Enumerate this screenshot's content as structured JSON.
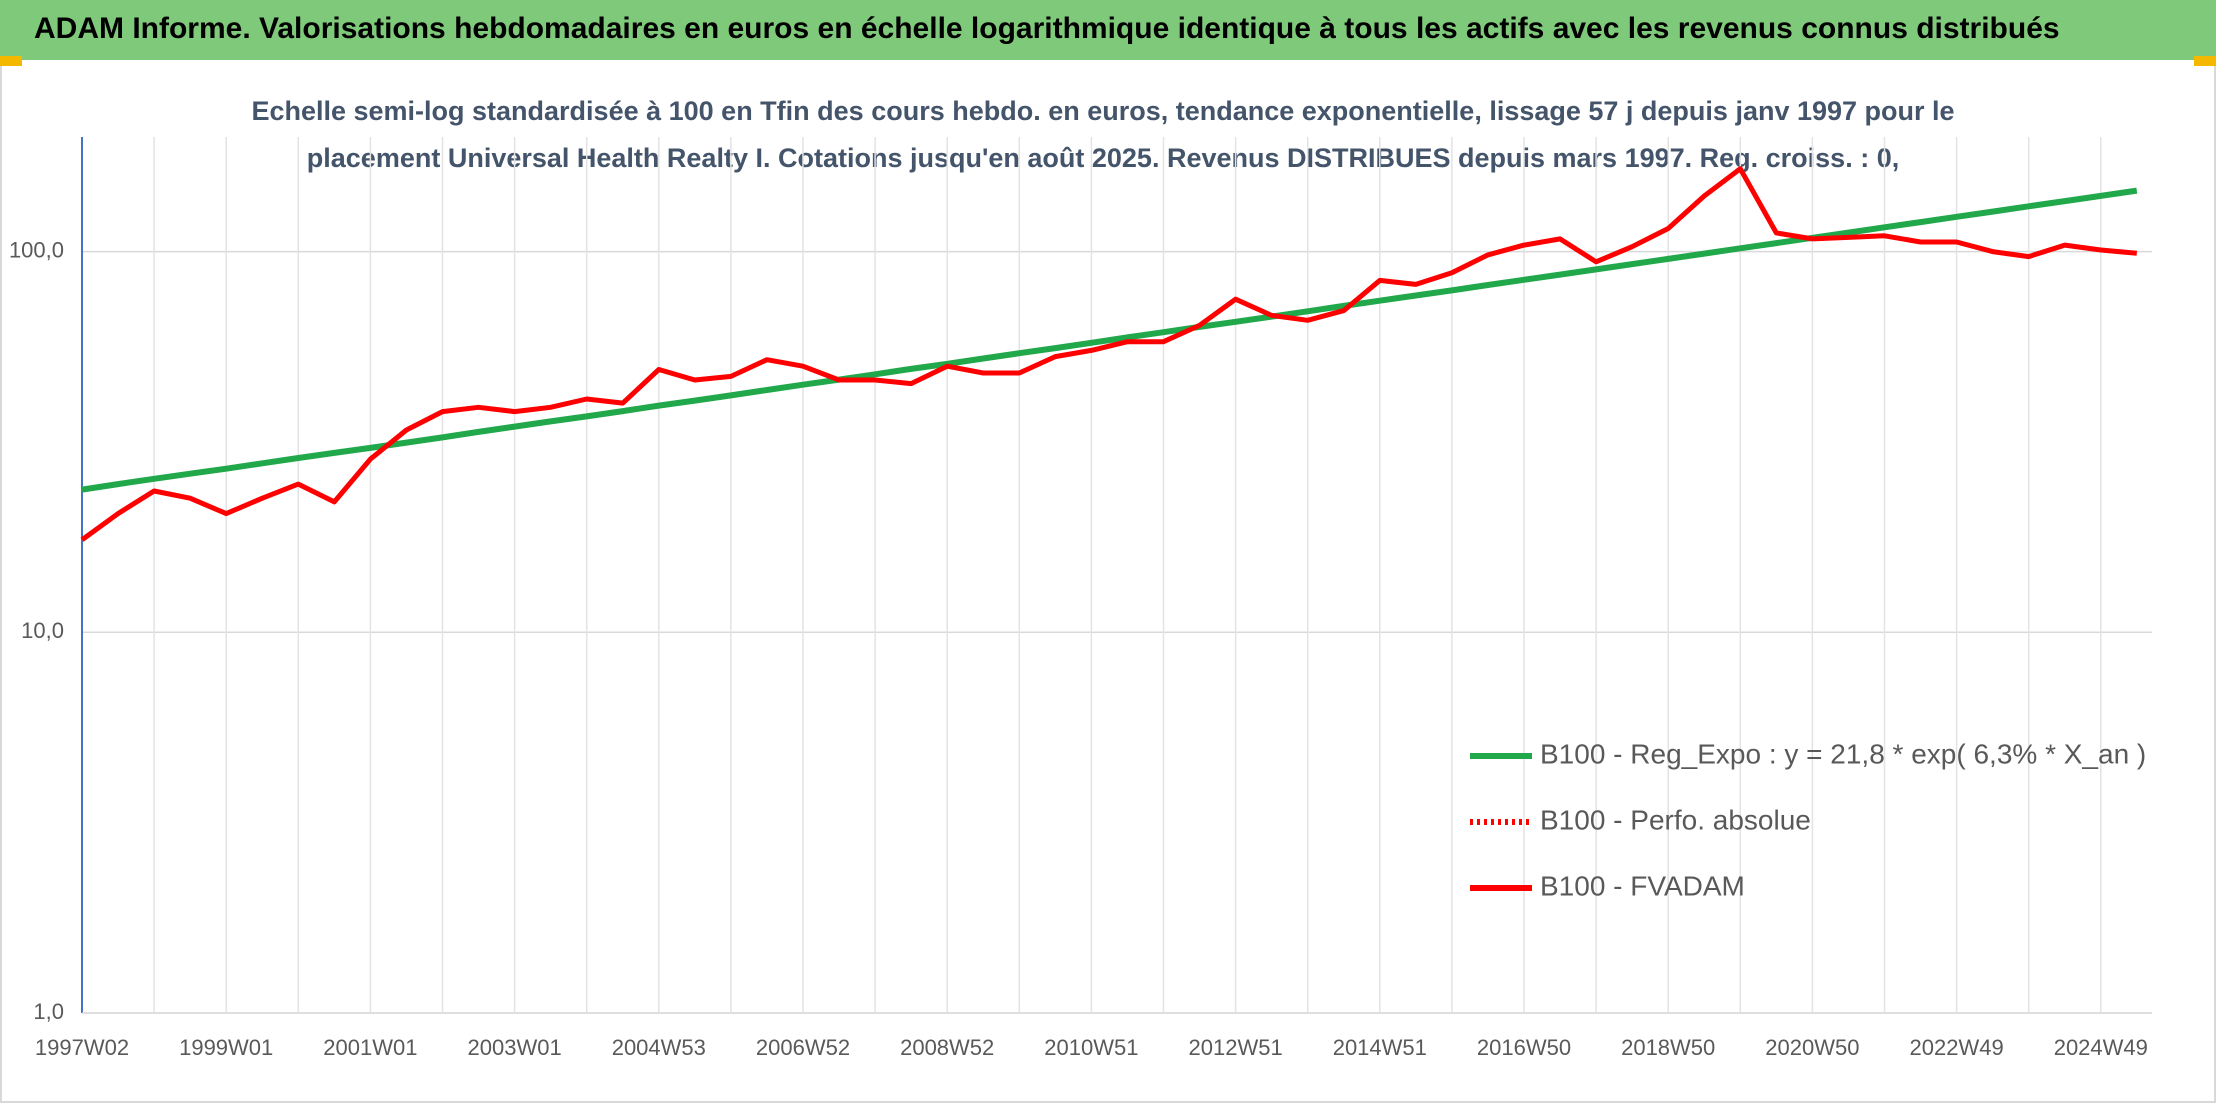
{
  "chart_data": {
    "type": "line",
    "title": "ADAM Informe. Valorisations hebdomadaires en euros en échelle logarithmique identique à tous les actifs avec les revenus connus distribués",
    "subtitle": [
      "Echelle semi-log standardisée à 100 en Tfin des cours hebdo. en euros, tendance exponentielle, lissage 57 j depuis janv 1997 pour le",
      "placement Universal Health Realty I. Cotations jusqu'en août 2025. Revenus DISTRIBUES depuis mars 1997. Reg. croiss. : 0,"
    ],
    "log_scale": true,
    "grid": true,
    "legend_position": "right",
    "ylim": [
      1,
      200
    ],
    "yticks": [
      {
        "value": 1,
        "label": "1,0"
      },
      {
        "value": 10,
        "label": "10,0"
      },
      {
        "value": 100,
        "label": "100,0"
      }
    ],
    "categories": [
      "1997W02",
      null,
      null,
      null,
      "1999W01",
      null,
      null,
      null,
      "2001W01",
      null,
      null,
      null,
      "2003W01",
      null,
      null,
      null,
      "2004W53",
      null,
      null,
      null,
      "2006W52",
      null,
      null,
      null,
      "2008W52",
      null,
      null,
      null,
      "2010W51",
      null,
      null,
      null,
      "2012W51",
      null,
      null,
      null,
      "2014W51",
      null,
      null,
      null,
      "2016W50",
      null,
      null,
      null,
      "2018W50",
      null,
      null,
      null,
      "2020W50",
      null,
      null,
      null,
      "2022W49",
      null,
      null,
      null,
      "2024W49",
      null
    ],
    "series": [
      {
        "name": "B100 - Reg_Expo : y = 21,8 * exp( 6,3% *  X_an )",
        "color": "#21a84a",
        "style": "solid",
        "values": [
          23.7,
          24.5,
          25.3,
          26.1,
          26.9,
          27.8,
          28.7,
          29.6,
          30.5,
          31.5,
          32.5,
          33.6,
          34.7,
          35.8,
          36.9,
          38.1,
          39.4,
          40.6,
          41.9,
          43.3,
          44.7,
          46.1,
          47.6,
          49.2,
          50.7,
          52.4,
          54.1,
          55.8,
          57.6,
          59.5,
          61.4,
          63.4,
          65.4,
          67.5,
          69.7,
          72.0,
          74.3,
          76.7,
          79.1,
          81.7,
          84.3,
          87.0,
          89.8,
          92.7,
          95.7,
          98.8,
          102.0,
          105.3,
          108.7,
          112.2,
          115.8,
          119.5,
          123.4,
          127.4,
          131.5,
          135.7,
          140.1,
          144.6
        ]
      },
      {
        "name": "B100 - Perfo. absolue",
        "color": "#ff0000",
        "style": "dotted",
        "values": [
          null,
          null,
          null,
          null,
          null,
          null,
          null,
          null,
          null,
          null,
          null,
          null,
          null,
          null,
          null,
          null,
          null,
          null,
          null,
          null,
          null,
          null,
          null,
          null,
          null,
          null,
          null,
          null,
          null,
          null,
          null,
          null,
          null,
          null,
          null,
          null,
          null,
          null,
          null,
          null,
          null,
          null,
          null,
          null,
          null,
          null,
          null,
          null,
          null,
          null,
          null,
          null,
          null,
          null,
          null,
          null,
          null,
          null
        ]
      },
      {
        "name": "B100 - FVADAM",
        "color": "#ff0000",
        "style": "solid",
        "values": [
          17.5,
          20.5,
          23.5,
          22.5,
          20.5,
          22.5,
          24.5,
          22.0,
          28.5,
          34,
          38,
          39,
          38,
          39,
          41,
          40,
          49,
          46,
          47,
          52,
          50,
          46,
          46,
          45,
          50,
          48,
          48,
          53,
          55,
          58,
          58,
          64,
          75,
          68,
          66,
          70,
          84,
          82,
          88,
          98,
          104,
          108,
          94,
          103,
          115,
          140,
          165,
          112,
          108,
          109,
          110,
          106,
          106,
          100,
          97,
          104,
          101,
          99
        ]
      }
    ]
  }
}
